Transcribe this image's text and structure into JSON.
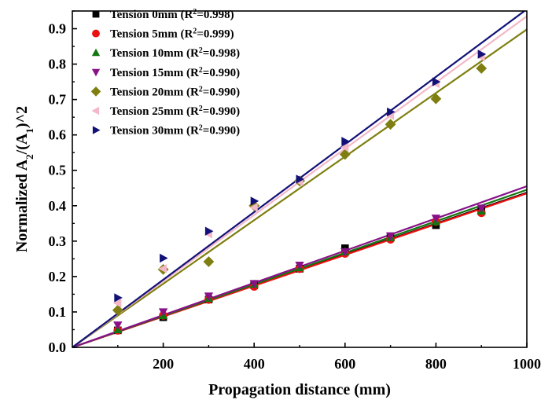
{
  "chart_data": {
    "type": "scatter",
    "xlabel": "Propagation distance (mm)",
    "ylabel_parts": [
      "Normalized A",
      "2",
      "/(A",
      "1",
      ")^2"
    ],
    "xlim": [
      0,
      1000
    ],
    "ylim": [
      0,
      0.95
    ],
    "x_ticks": [
      200,
      400,
      600,
      800,
      1000
    ],
    "y_ticks": [
      0.0,
      0.1,
      0.2,
      0.3,
      0.4,
      0.5,
      0.6,
      0.7,
      0.8,
      0.9
    ],
    "grid": false,
    "legend_position": "top-left",
    "x": [
      100,
      200,
      300,
      400,
      500,
      600,
      700,
      800,
      900
    ],
    "series": [
      {
        "name": "Tension   0mm",
        "r2": "0.998",
        "marker": "square",
        "color": "#000000",
        "values": [
          0.048,
          0.085,
          0.135,
          0.175,
          0.222,
          0.28,
          0.31,
          0.345,
          0.385
        ],
        "fit": {
          "intercept": 0.0,
          "slope": 0.000437
        }
      },
      {
        "name": "Tension   5mm",
        "r2": "0.999",
        "marker": "circle",
        "color": "#ee1111",
        "values": [
          0.048,
          0.09,
          0.135,
          0.172,
          0.222,
          0.265,
          0.305,
          0.355,
          0.38
        ],
        "fit": {
          "intercept": 0.0,
          "slope": 0.000435
        }
      },
      {
        "name": "Tension 10mm",
        "r2": "0.998",
        "marker": "triangle-up",
        "color": "#117711",
        "values": [
          0.05,
          0.09,
          0.138,
          0.178,
          0.225,
          0.27,
          0.31,
          0.355,
          0.385
        ],
        "fit": {
          "intercept": 0.0,
          "slope": 0.000445
        }
      },
      {
        "name": "Tension 15mm",
        "r2": "0.990",
        "marker": "triangle-down",
        "color": "#881188",
        "values": [
          0.063,
          0.1,
          0.145,
          0.18,
          0.232,
          0.27,
          0.315,
          0.365,
          0.393
        ],
        "fit": {
          "intercept": 0.0,
          "slope": 0.000455
        }
      },
      {
        "name": "Tension 20mm",
        "r2": "0.990",
        "marker": "diamond",
        "color": "#7f7f11",
        "values": [
          0.105,
          0.22,
          0.242,
          0.4,
          0.47,
          0.545,
          0.63,
          0.702,
          0.788
        ],
        "fit": {
          "intercept": 0.0,
          "slope": 0.000898
        }
      },
      {
        "name": "Tension 25mm",
        "r2": "0.990",
        "marker": "triangle-left",
        "color": "#f4b8c8",
        "values": [
          0.125,
          0.222,
          0.32,
          0.395,
          0.468,
          0.565,
          0.655,
          0.745,
          0.82
        ],
        "fit": {
          "intercept": 0.0,
          "slope": 0.000935
        }
      },
      {
        "name": "Tension 30mm",
        "r2": "0.990",
        "marker": "triangle-right",
        "color": "#111177",
        "values": [
          0.14,
          0.252,
          0.328,
          0.413,
          0.475,
          0.582,
          0.665,
          0.75,
          0.828
        ],
        "fit": {
          "intercept": 0.0,
          "slope": 0.000955
        }
      }
    ]
  }
}
